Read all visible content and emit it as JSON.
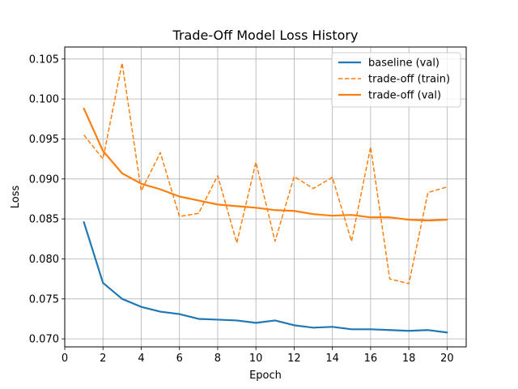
{
  "chart_data": {
    "type": "line",
    "title": "Trade-Off Model Loss History",
    "xlabel": "Epoch",
    "ylabel": "Loss",
    "xlim": [
      0,
      21
    ],
    "ylim": [
      0.069,
      0.1065
    ],
    "xticks": [
      0,
      2,
      4,
      6,
      8,
      10,
      12,
      14,
      16,
      18,
      20
    ],
    "yticks": [
      0.07,
      0.075,
      0.08,
      0.085,
      0.09,
      0.095,
      0.1,
      0.105
    ],
    "ytick_labels": [
      "0.070",
      "0.075",
      "0.080",
      "0.085",
      "0.090",
      "0.095",
      "0.100",
      "0.105"
    ],
    "grid": true,
    "legend_position": "top-right",
    "x": [
      1,
      2,
      3,
      4,
      5,
      6,
      7,
      8,
      9,
      10,
      11,
      12,
      13,
      14,
      15,
      16,
      17,
      18,
      19,
      20
    ],
    "series": [
      {
        "name": "baseline (val)",
        "color": "#1f77b4",
        "style": "solid",
        "values": [
          0.0846,
          0.077,
          0.075,
          0.074,
          0.0734,
          0.0731,
          0.0725,
          0.0724,
          0.0723,
          0.072,
          0.0723,
          0.0717,
          0.0714,
          0.0715,
          0.0712,
          0.0712,
          0.0711,
          0.071,
          0.0711,
          0.0708
        ]
      },
      {
        "name": "trade-off (train)",
        "color": "#ff7f0e",
        "style": "dashed",
        "values": [
          0.0955,
          0.0925,
          0.1045,
          0.0885,
          0.0933,
          0.0853,
          0.0857,
          0.0904,
          0.082,
          0.0921,
          0.0822,
          0.0903,
          0.0888,
          0.0902,
          0.0822,
          0.094,
          0.0775,
          0.0769,
          0.0883,
          0.089
        ]
      },
      {
        "name": "trade-off (val)",
        "color": "#ff7f0e",
        "style": "solid",
        "values": [
          0.0988,
          0.0935,
          0.0907,
          0.0894,
          0.0887,
          0.0878,
          0.0873,
          0.0868,
          0.0866,
          0.0864,
          0.0861,
          0.086,
          0.0856,
          0.0854,
          0.0855,
          0.0852,
          0.0852,
          0.0849,
          0.0848,
          0.0849
        ]
      }
    ]
  }
}
